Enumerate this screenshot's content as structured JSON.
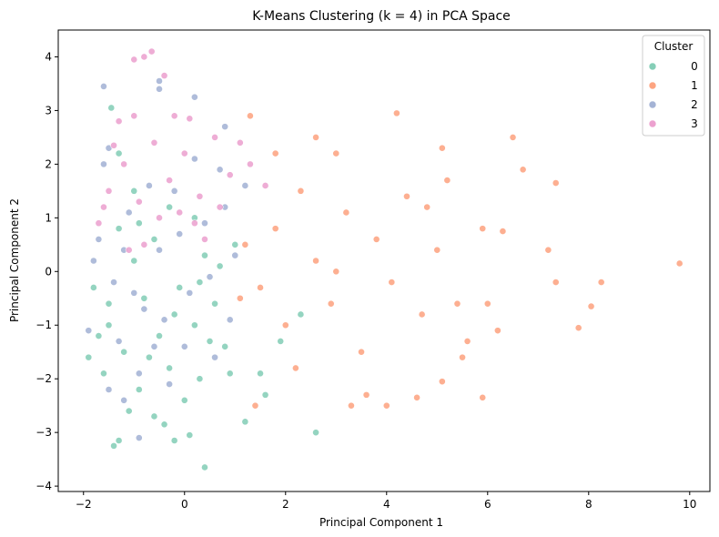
{
  "chart_data": {
    "type": "scatter",
    "title": "K-Means Clustering (k = 4) in PCA Space",
    "xlabel": "Principal Component 1",
    "ylabel": "Principal Component 2",
    "xlim": [
      -2.5,
      10.4
    ],
    "ylim": [
      -4.1,
      4.5
    ],
    "xticks": [
      -2,
      0,
      2,
      4,
      6,
      8,
      10
    ],
    "yticks": [
      -4,
      -3,
      -2,
      -1,
      0,
      1,
      2,
      3,
      4
    ],
    "grid": false,
    "legend": {
      "title": "Cluster",
      "placement": "top-right"
    },
    "series": [
      {
        "name": "0",
        "color": "#66c2a5",
        "points": [
          [
            -1.5,
            -1.0
          ],
          [
            -1.2,
            -1.5
          ],
          [
            -0.8,
            -0.5
          ],
          [
            -0.5,
            -1.2
          ],
          [
            -1.8,
            -0.3
          ],
          [
            -0.2,
            -0.8
          ],
          [
            0.2,
            -1.0
          ],
          [
            0.6,
            -0.6
          ],
          [
            -1.0,
            0.2
          ],
          [
            -0.6,
            0.6
          ],
          [
            -1.3,
            0.8
          ],
          [
            0.4,
            0.3
          ],
          [
            0.8,
            -1.4
          ],
          [
            -1.6,
            -1.9
          ],
          [
            -0.9,
            -2.2
          ],
          [
            -0.3,
            -1.8
          ],
          [
            0.3,
            -2.0
          ],
          [
            0.9,
            -1.9
          ],
          [
            -1.1,
            -2.6
          ],
          [
            -0.6,
            -2.7
          ],
          [
            0.0,
            -2.4
          ],
          [
            -1.4,
            -3.25
          ],
          [
            -1.3,
            -3.15
          ],
          [
            -0.2,
            -3.15
          ],
          [
            0.1,
            -3.05
          ],
          [
            0.4,
            -3.65
          ],
          [
            1.2,
            -2.8
          ],
          [
            2.6,
            -3.0
          ],
          [
            1.6,
            -2.3
          ],
          [
            1.5,
            -1.9
          ],
          [
            -0.4,
            -2.85
          ],
          [
            -0.7,
            -1.6
          ],
          [
            0.5,
            -1.3
          ],
          [
            -1.7,
            -1.2
          ],
          [
            -1.0,
            1.5
          ],
          [
            -0.3,
            1.2
          ],
          [
            0.2,
            1.0
          ],
          [
            -1.3,
            2.2
          ],
          [
            -1.45,
            3.05
          ],
          [
            -0.9,
            0.9
          ],
          [
            1.0,
            0.5
          ],
          [
            0.7,
            0.1
          ],
          [
            1.9,
            -1.3
          ],
          [
            2.3,
            -0.8
          ],
          [
            -1.5,
            -0.6
          ],
          [
            -0.1,
            -0.3
          ],
          [
            0.3,
            -0.2
          ],
          [
            -1.9,
            -1.6
          ]
        ]
      },
      {
        "name": "1",
        "color": "#fc8d62",
        "points": [
          [
            1.2,
            0.5
          ],
          [
            1.5,
            -0.3
          ],
          [
            1.8,
            0.8
          ],
          [
            2.0,
            -1.0
          ],
          [
            2.3,
            1.5
          ],
          [
            2.6,
            0.2
          ],
          [
            2.9,
            -0.6
          ],
          [
            3.2,
            1.1
          ],
          [
            3.5,
            -1.5
          ],
          [
            3.8,
            0.6
          ],
          [
            4.1,
            -0.2
          ],
          [
            4.4,
            1.4
          ],
          [
            4.7,
            -0.8
          ],
          [
            5.0,
            0.4
          ],
          [
            5.1,
            2.3
          ],
          [
            5.2,
            1.7
          ],
          [
            5.4,
            -0.6
          ],
          [
            5.6,
            -1.3
          ],
          [
            5.9,
            0.8
          ],
          [
            6.0,
            -0.6
          ],
          [
            6.3,
            0.75
          ],
          [
            6.5,
            2.5
          ],
          [
            6.7,
            1.9
          ],
          [
            7.2,
            0.4
          ],
          [
            7.35,
            1.65
          ],
          [
            7.35,
            -0.2
          ],
          [
            7.8,
            -1.05
          ],
          [
            8.05,
            -0.65
          ],
          [
            8.25,
            -0.2
          ],
          [
            9.8,
            0.15
          ],
          [
            4.2,
            2.95
          ],
          [
            2.6,
            2.5
          ],
          [
            3.3,
            -2.5
          ],
          [
            3.6,
            -2.3
          ],
          [
            4.0,
            -2.5
          ],
          [
            4.6,
            -2.35
          ],
          [
            5.1,
            -2.05
          ],
          [
            5.9,
            -2.35
          ],
          [
            1.4,
            -2.5
          ],
          [
            2.2,
            -1.8
          ],
          [
            1.3,
            2.9
          ],
          [
            1.8,
            2.2
          ],
          [
            3.0,
            2.2
          ],
          [
            5.5,
            -1.6
          ],
          [
            6.2,
            -1.1
          ],
          [
            4.8,
            1.2
          ],
          [
            3.0,
            0.0
          ],
          [
            1.1,
            -0.5
          ]
        ]
      },
      {
        "name": "2",
        "color": "#8da0cb",
        "points": [
          [
            -1.7,
            0.6
          ],
          [
            -1.4,
            -0.2
          ],
          [
            -1.1,
            1.1
          ],
          [
            -0.8,
            -0.7
          ],
          [
            -0.5,
            0.4
          ],
          [
            -0.2,
            1.5
          ],
          [
            0.1,
            -0.4
          ],
          [
            0.4,
            0.9
          ],
          [
            0.7,
            1.9
          ],
          [
            0.9,
            -0.9
          ],
          [
            -1.6,
            2.0
          ],
          [
            -1.5,
            2.3
          ],
          [
            -1.6,
            3.45
          ],
          [
            -0.5,
            3.55
          ],
          [
            -0.5,
            3.4
          ],
          [
            0.2,
            3.25
          ],
          [
            0.8,
            2.7
          ],
          [
            -1.9,
            -1.1
          ],
          [
            -1.5,
            -2.2
          ],
          [
            -1.2,
            -2.4
          ],
          [
            -0.9,
            -1.9
          ],
          [
            -0.3,
            -2.1
          ],
          [
            0.6,
            -1.6
          ],
          [
            -0.9,
            -3.1
          ],
          [
            -1.3,
            -1.3
          ],
          [
            1.0,
            0.3
          ],
          [
            0.5,
            -0.1
          ],
          [
            -0.1,
            0.7
          ],
          [
            -0.7,
            1.6
          ],
          [
            0.2,
            2.1
          ],
          [
            -1.8,
            0.2
          ],
          [
            0.0,
            -1.4
          ],
          [
            -0.4,
            -0.9
          ],
          [
            -1.0,
            -0.4
          ],
          [
            0.8,
            1.2
          ],
          [
            -1.2,
            0.4
          ],
          [
            1.2,
            1.6
          ],
          [
            -0.6,
            -1.4
          ]
        ]
      },
      {
        "name": "3",
        "color": "#e78ac3",
        "points": [
          [
            -1.5,
            1.5
          ],
          [
            -1.2,
            2.0
          ],
          [
            -0.9,
            1.3
          ],
          [
            -0.6,
            2.4
          ],
          [
            -0.3,
            1.7
          ],
          [
            0.0,
            2.2
          ],
          [
            0.3,
            1.4
          ],
          [
            0.6,
            2.5
          ],
          [
            0.9,
            1.8
          ],
          [
            -1.0,
            3.95
          ],
          [
            -0.8,
            4.0
          ],
          [
            -0.65,
            4.1
          ],
          [
            -0.4,
            3.65
          ],
          [
            -1.3,
            2.8
          ],
          [
            -1.0,
            2.9
          ],
          [
            -0.2,
            2.9
          ],
          [
            0.1,
            2.85
          ],
          [
            1.1,
            2.4
          ],
          [
            -1.7,
            0.9
          ],
          [
            -0.8,
            0.5
          ],
          [
            0.4,
            0.6
          ],
          [
            -1.4,
            2.35
          ],
          [
            -1.1,
            0.4
          ],
          [
            0.7,
            1.2
          ],
          [
            -0.5,
            1.0
          ],
          [
            0.2,
            0.9
          ],
          [
            1.3,
            2.0
          ],
          [
            -0.1,
            1.1
          ],
          [
            1.6,
            1.6
          ],
          [
            -1.6,
            1.2
          ]
        ]
      }
    ]
  }
}
